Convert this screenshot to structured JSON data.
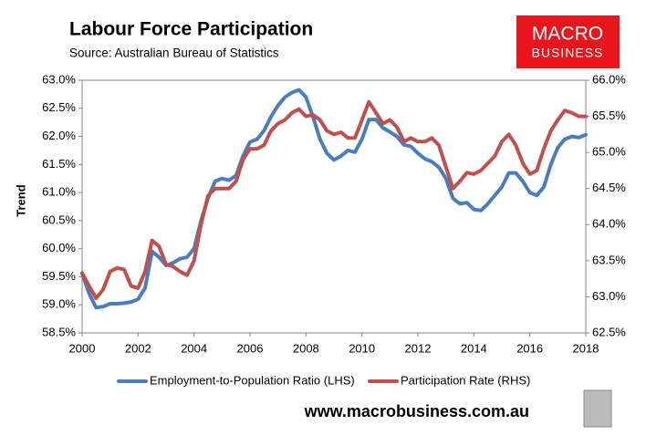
{
  "chart_data": {
    "type": "line",
    "title": "Labour Force Participation",
    "subtitle": "Source: Australian Bureau of Statistics",
    "ylabel": "Trend",
    "logo": [
      "MACRO",
      "BUSINESS"
    ],
    "footer": "www.macrobusiness.com.au",
    "x": [
      2000,
      2000.25,
      2000.5,
      2000.75,
      2001,
      2001.25,
      2001.5,
      2001.75,
      2002,
      2002.25,
      2002.5,
      2002.75,
      2003,
      2003.25,
      2003.5,
      2003.75,
      2004,
      2004.25,
      2004.5,
      2004.75,
      2005,
      2005.25,
      2005.5,
      2005.75,
      2006,
      2006.25,
      2006.5,
      2006.75,
      2007,
      2007.25,
      2007.5,
      2007.75,
      2008,
      2008.25,
      2008.5,
      2008.75,
      2009,
      2009.25,
      2009.5,
      2009.75,
      2010,
      2010.25,
      2010.5,
      2010.75,
      2011,
      2011.25,
      2011.5,
      2011.75,
      2012,
      2012.25,
      2012.5,
      2012.75,
      2013,
      2013.25,
      2013.5,
      2013.75,
      2014,
      2014.25,
      2014.5,
      2014.75,
      2015,
      2015.25,
      2015.5,
      2015.75,
      2016,
      2016.25,
      2016.5,
      2016.75,
      2017,
      2017.25,
      2017.5,
      2017.75,
      2018
    ],
    "series": [
      {
        "name": "Employment-to-Population Ratio (LHS)",
        "color": "#4a7ebb",
        "axis": "y",
        "values": [
          59.56,
          59.2,
          58.95,
          58.97,
          59.02,
          59.02,
          59.03,
          59.05,
          59.1,
          59.3,
          59.95,
          59.85,
          59.7,
          59.75,
          59.82,
          59.85,
          60.0,
          60.5,
          60.9,
          61.2,
          61.25,
          61.22,
          61.3,
          61.65,
          61.9,
          61.95,
          62.1,
          62.35,
          62.55,
          62.7,
          62.78,
          62.83,
          62.7,
          62.35,
          61.95,
          61.7,
          61.58,
          61.65,
          61.75,
          61.72,
          61.95,
          62.3,
          62.3,
          62.15,
          62.08,
          62.0,
          61.85,
          61.82,
          61.7,
          61.6,
          61.55,
          61.45,
          61.25,
          60.9,
          60.8,
          60.82,
          60.7,
          60.68,
          60.8,
          60.95,
          61.1,
          61.35,
          61.35,
          61.2,
          61.0,
          60.95,
          61.1,
          61.5,
          61.8,
          61.95,
          62.0,
          61.98,
          62.03
        ]
      },
      {
        "name": "Participation Rate (RHS)",
        "color": "#c0504d",
        "axis": "y2",
        "values": [
          63.33,
          63.15,
          62.98,
          63.1,
          63.35,
          63.4,
          63.38,
          63.15,
          63.12,
          63.35,
          63.78,
          63.7,
          63.45,
          63.42,
          63.35,
          63.3,
          63.5,
          64.0,
          64.4,
          64.5,
          64.5,
          64.5,
          64.6,
          64.9,
          65.05,
          65.05,
          65.1,
          65.3,
          65.4,
          65.45,
          65.55,
          65.6,
          65.5,
          65.52,
          65.45,
          65.3,
          65.25,
          65.28,
          65.2,
          65.2,
          65.45,
          65.7,
          65.55,
          65.4,
          65.45,
          65.35,
          65.15,
          65.2,
          65.15,
          65.15,
          65.2,
          65.1,
          64.8,
          64.5,
          64.6,
          64.72,
          64.7,
          64.75,
          64.85,
          64.95,
          65.15,
          65.25,
          65.1,
          64.85,
          64.7,
          64.75,
          65.05,
          65.3,
          65.45,
          65.58,
          65.55,
          65.5,
          65.5
        ]
      }
    ],
    "xlim": [
      2000,
      2018
    ],
    "xticks": [
      2000,
      2002,
      2004,
      2006,
      2008,
      2010,
      2012,
      2014,
      2016,
      2018
    ],
    "ylim": [
      58.5,
      63.0
    ],
    "yticks": [
      {
        "value": 58.5,
        "label": "58.5%"
      },
      {
        "value": 59,
        "label": "59.0%"
      },
      {
        "value": 59.5,
        "label": "59.5%"
      },
      {
        "value": 60,
        "label": "60.0%"
      },
      {
        "value": 60.5,
        "label": "60.5%"
      },
      {
        "value": 61,
        "label": "61.0%"
      },
      {
        "value": 61.5,
        "label": "61.5%"
      },
      {
        "value": 62,
        "label": "62.0%"
      },
      {
        "value": 62.5,
        "label": "62.5%"
      },
      {
        "value": 63,
        "label": "63.0%"
      }
    ],
    "y2lim": [
      62.5,
      66.0
    ],
    "y2ticks": [
      {
        "value": 62.5,
        "label": "62.5%"
      },
      {
        "value": 63,
        "label": "63.0%"
      },
      {
        "value": 63.5,
        "label": "63.5%"
      },
      {
        "value": 64,
        "label": "64.0%"
      },
      {
        "value": 64.5,
        "label": "64.5%"
      },
      {
        "value": 65,
        "label": "65.0%"
      },
      {
        "value": 65.5,
        "label": "65.5%"
      },
      {
        "value": 66,
        "label": "66.0%"
      }
    ],
    "grid": false,
    "legend": "bottom"
  }
}
